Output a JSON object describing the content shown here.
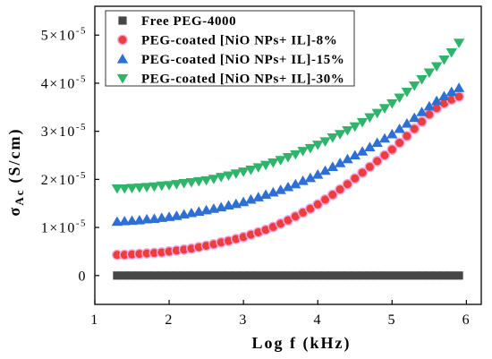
{
  "chart_data": {
    "type": "scatter",
    "xlabel": "Log f (kHz)",
    "ylabel": {
      "symbol": "σ",
      "sub": "Ac",
      "unit": "(S/cm)"
    },
    "xlim": [
      1,
      6.2
    ],
    "ylim": [
      -6e-06,
      5.6e-05
    ],
    "grid": false,
    "legend_position": "top-left",
    "x_ticks": [
      {
        "value": 1,
        "label": "1"
      },
      {
        "value": 2,
        "label": "2"
      },
      {
        "value": 3,
        "label": "3"
      },
      {
        "value": 4,
        "label": "4"
      },
      {
        "value": 5,
        "label": "5"
      },
      {
        "value": 6,
        "label": "6"
      }
    ],
    "y_ticks": [
      {
        "value": 0,
        "base": "0"
      },
      {
        "value": 1e-05,
        "base": "1×10",
        "exp": "-5"
      },
      {
        "value": 2e-05,
        "base": "2×10",
        "exp": "-5"
      },
      {
        "value": 3e-05,
        "base": "3×10",
        "exp": "-5"
      },
      {
        "value": 4e-05,
        "base": "4×10",
        "exp": "-5"
      },
      {
        "value": 5e-05,
        "base": "5×10",
        "exp": "-5"
      }
    ],
    "x": [
      1.3,
      1.4,
      1.5,
      1.6,
      1.7,
      1.8,
      1.9,
      2.0,
      2.1,
      2.2,
      2.3,
      2.4,
      2.5,
      2.6,
      2.7,
      2.8,
      2.9,
      3.0,
      3.1,
      3.2,
      3.3,
      3.4,
      3.5,
      3.6,
      3.7,
      3.8,
      3.9,
      4.0,
      4.1,
      4.2,
      4.3,
      4.4,
      4.5,
      4.6,
      4.7,
      4.8,
      4.9,
      5.0,
      5.1,
      5.2,
      5.3,
      5.4,
      5.5,
      5.6,
      5.7,
      5.8,
      5.9
    ],
    "series": [
      {
        "name": "Free PEG-4000",
        "marker": "square",
        "color": "#474747",
        "values": [
          0,
          0,
          0,
          0,
          0,
          0,
          0,
          0,
          0,
          0,
          0,
          0,
          0,
          0,
          0,
          0,
          0,
          0,
          0,
          0,
          0,
          0,
          0,
          0,
          0,
          0,
          0,
          0,
          0,
          0,
          0,
          0,
          0,
          0,
          0,
          0,
          0,
          0,
          0,
          0,
          0,
          0,
          0,
          0,
          0,
          0,
          0
        ]
      },
      {
        "name": "PEG-coated [NiO NPs+ IL]-8%",
        "marker": "circle",
        "color": "#ee3d3d",
        "edge_color": "#f0a8e4",
        "values": [
          4.3e-06,
          4.3e-06,
          4.4e-06,
          4.5e-06,
          4.6e-06,
          4.7e-06,
          4.8e-06,
          5e-06,
          5.2e-06,
          5.4e-06,
          5.6e-06,
          5.9e-06,
          6.2e-06,
          6.5e-06,
          6.9e-06,
          7.2e-06,
          7.6e-06,
          8e-06,
          8.5e-06,
          9e-06,
          9.5e-06,
          1.01e-05,
          1.08e-05,
          1.15e-05,
          1.23e-05,
          1.31e-05,
          1.39e-05,
          1.48e-05,
          1.58e-05,
          1.68e-05,
          1.79e-05,
          1.9e-05,
          2.02e-05,
          2.14e-05,
          2.26e-05,
          2.38e-05,
          2.5e-05,
          2.62e-05,
          2.76e-05,
          2.9e-05,
          3.05e-05,
          3.2e-05,
          3.35e-05,
          3.48e-05,
          3.58e-05,
          3.66e-05,
          3.72e-05
        ]
      },
      {
        "name": "PEG-coated [NiO NPs+ IL]-15%",
        "marker": "triangle-up",
        "color": "#2e6fd6",
        "values": [
          1.12e-05,
          1.13e-05,
          1.14e-05,
          1.15e-05,
          1.17e-05,
          1.18e-05,
          1.2e-05,
          1.22e-05,
          1.24e-05,
          1.27e-05,
          1.3e-05,
          1.33e-05,
          1.36e-05,
          1.39e-05,
          1.42e-05,
          1.46e-05,
          1.49e-05,
          1.53e-05,
          1.58e-05,
          1.63e-05,
          1.68e-05,
          1.73e-05,
          1.78e-05,
          1.84e-05,
          1.9e-05,
          1.97e-05,
          2.03e-05,
          2.1e-05,
          2.18e-05,
          2.26e-05,
          2.34e-05,
          2.42e-05,
          2.5e-05,
          2.58e-05,
          2.67e-05,
          2.76e-05,
          2.85e-05,
          2.94e-05,
          3.05e-05,
          3.16e-05,
          3.28e-05,
          3.4e-05,
          3.52e-05,
          3.63e-05,
          3.73e-05,
          3.82e-05,
          3.9e-05
        ]
      },
      {
        "name": "PEG-coated [NiO NPs+ IL]-30%",
        "marker": "triangle-down",
        "color": "#2fb46b",
        "values": [
          1.81e-05,
          1.81e-05,
          1.82e-05,
          1.83e-05,
          1.84e-05,
          1.85e-05,
          1.87e-05,
          1.88e-05,
          1.9e-05,
          1.92e-05,
          1.94e-05,
          1.96e-05,
          1.98e-05,
          2.01e-05,
          2.05e-05,
          2.08e-05,
          2.12e-05,
          2.16e-05,
          2.2e-05,
          2.25e-05,
          2.3e-05,
          2.35e-05,
          2.4e-05,
          2.46e-05,
          2.52e-05,
          2.59e-05,
          2.65e-05,
          2.72e-05,
          2.79e-05,
          2.87e-05,
          2.94e-05,
          3.02e-05,
          3.1e-05,
          3.19e-05,
          3.29e-05,
          3.38e-05,
          3.48e-05,
          3.58e-05,
          3.7e-05,
          3.82e-05,
          3.95e-05,
          4.08e-05,
          4.22e-05,
          4.35e-05,
          4.49e-05,
          4.64e-05,
          4.84e-05
        ]
      }
    ]
  }
}
